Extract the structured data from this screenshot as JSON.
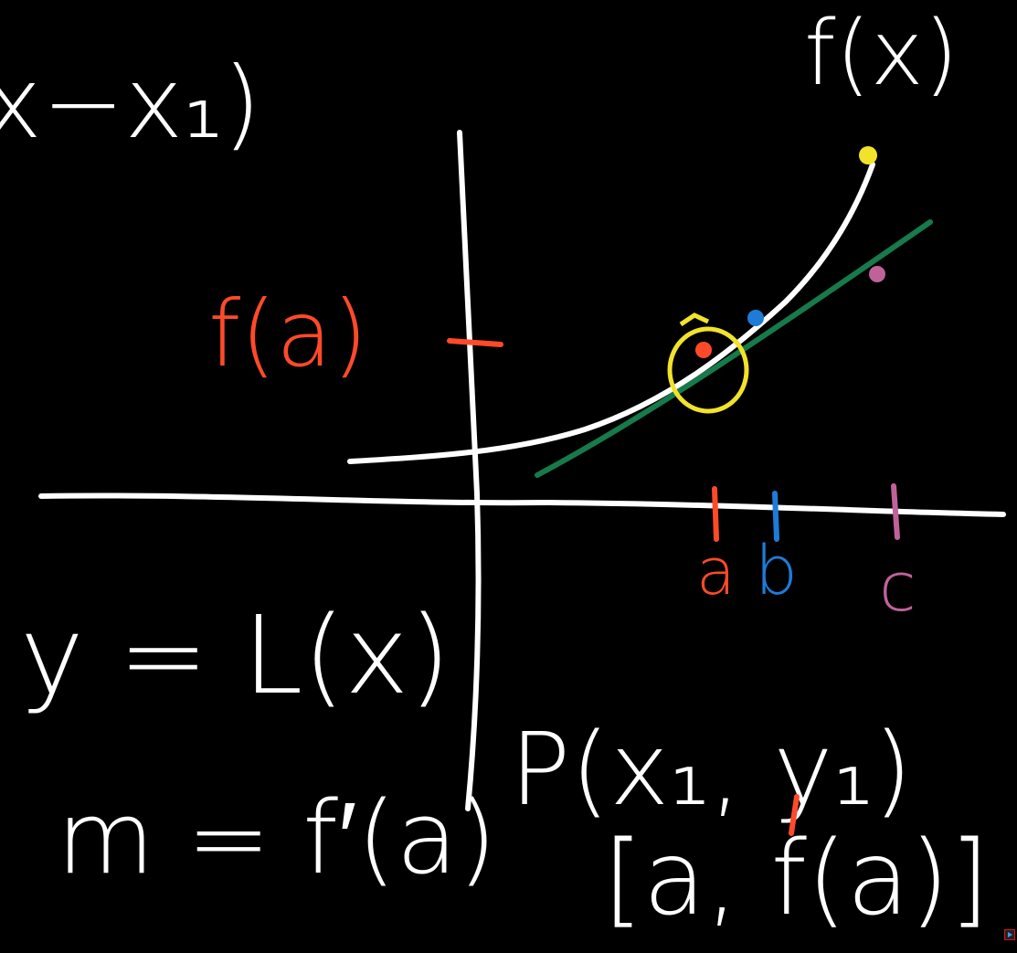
{
  "labels": {
    "top_left_fragment": "x−x₁)",
    "curve_label": "f(x)",
    "f_of_a": "f(a)",
    "tick_a": "a",
    "tick_b": "b",
    "tick_c": "c",
    "y_equals_L": "y = L(x)",
    "m_equals": "m = f′(a)",
    "point_p": "P(x₁, y₁)",
    "point_coords": "[a, f(a)]"
  },
  "colors": {
    "background": "#000000",
    "chalk": "#ffffff",
    "red": "#ff4a2a",
    "blue": "#1e7bd8",
    "purple": "#c0629a",
    "yellow": "#f2e32a",
    "green": "#177a4a"
  },
  "icons": {
    "corner_control": "play-icon"
  }
}
